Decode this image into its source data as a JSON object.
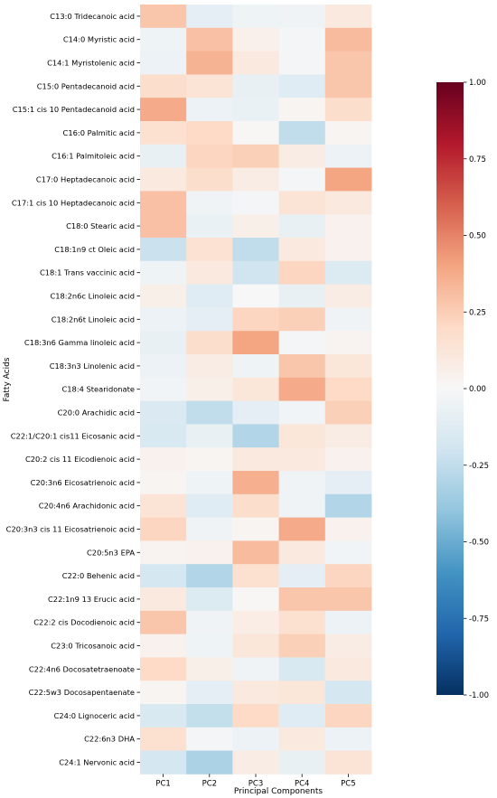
{
  "chart_data": {
    "type": "heatmap",
    "title": "",
    "xlabel": "Principal Components",
    "ylabel": "Fatty Acids",
    "columns": [
      "PC1",
      "PC2",
      "PC3",
      "PC4",
      "PC5"
    ],
    "rows": [
      "C13:0 Tridecanoic acid",
      "C14:0 Myristic acid",
      "C14:1 Myristolenic acid",
      "C15:0 Pentadecanoid acid",
      "C15:1 cis 10 Pentadecanoid acid",
      "C16:0 Palmitic acid",
      "C16:1 Palmitoleic acid",
      "C17:0 Heptadecanoic acid",
      "C17:1 cis 10  Heptadecanoic acid",
      "C18:0 Stearic acid",
      "C18:1n9 ct Oleic acid",
      "C18:1 Trans vaccinic acid",
      "C18:2n6c Linoleic acid",
      "C18:2n6t Linoleic acid",
      "C18:3n6 Gamma linoleic acid",
      "C18:3n3 Linolenic acid",
      "C18:4 Stearidonate",
      "C20:0 Arachidic acid",
      "C22:1/C20:1 cis11  Eicosanic acid",
      "C20:2 cis 11 Eicodienoic acid",
      "C20:3n6 Eicosatrienoic acid",
      "C20:4n6 Arachidonic acid",
      "C20:3n3 cis 11 Eicosatrienoic acid",
      "C20:5n3 EPA",
      "C22:0 Behenic acid",
      "C22:1n9 13 Erucic acid",
      "C22:2 cis Docodienoic acid",
      "C23:0 Tricosanoic acid",
      "C22:4n6 Docosatetraenoate",
      "C22:5w3 Docosapentaenate",
      "C24:0 Lignoceric acid",
      "C22:6n3 DHA",
      "C24:1 Nervonic acid"
    ],
    "values": [
      [
        0.28,
        -0.1,
        -0.05,
        -0.04,
        0.1
      ],
      [
        -0.05,
        0.3,
        0.05,
        -0.02,
        0.32
      ],
      [
        -0.06,
        0.35,
        0.1,
        -0.02,
        0.28
      ],
      [
        0.18,
        0.14,
        -0.08,
        -0.12,
        0.28
      ],
      [
        0.38,
        -0.06,
        -0.07,
        0.02,
        0.18
      ],
      [
        0.16,
        0.2,
        0.01,
        -0.25,
        0.02
      ],
      [
        -0.08,
        0.22,
        0.24,
        0.08,
        -0.06
      ],
      [
        0.1,
        0.18,
        0.08,
        -0.02,
        0.4
      ],
      [
        0.3,
        -0.04,
        -0.02,
        0.14,
        0.1
      ],
      [
        0.3,
        -0.07,
        0.06,
        -0.08,
        0.04
      ],
      [
        -0.22,
        0.15,
        -0.25,
        0.1,
        0.04
      ],
      [
        -0.05,
        0.1,
        -0.2,
        0.22,
        -0.14
      ],
      [
        0.06,
        -0.12,
        0.0,
        -0.08,
        0.08
      ],
      [
        -0.06,
        -0.1,
        0.22,
        0.24,
        -0.04
      ],
      [
        -0.08,
        0.18,
        0.4,
        -0.02,
        0.03
      ],
      [
        -0.06,
        0.08,
        -0.05,
        0.28,
        0.12
      ],
      [
        -0.03,
        0.06,
        0.12,
        0.38,
        0.2
      ],
      [
        -0.15,
        -0.25,
        -0.1,
        -0.03,
        0.24
      ],
      [
        -0.16,
        -0.08,
        -0.3,
        0.12,
        0.08
      ],
      [
        0.04,
        0.02,
        0.1,
        0.1,
        0.04
      ],
      [
        0.02,
        -0.05,
        0.36,
        -0.04,
        -0.1
      ],
      [
        0.14,
        -0.12,
        0.18,
        -0.04,
        -0.3
      ],
      [
        0.22,
        -0.04,
        0.02,
        0.38,
        0.04
      ],
      [
        0.03,
        0.04,
        0.32,
        0.1,
        -0.03
      ],
      [
        -0.18,
        -0.3,
        0.16,
        -0.1,
        0.22
      ],
      [
        0.1,
        -0.14,
        0.01,
        0.28,
        0.28
      ],
      [
        0.28,
        -0.04,
        0.07,
        0.16,
        -0.06
      ],
      [
        0.04,
        -0.05,
        0.12,
        0.24,
        0.08
      ],
      [
        0.2,
        0.06,
        -0.04,
        -0.16,
        0.1
      ],
      [
        0.02,
        -0.1,
        0.1,
        0.12,
        -0.18
      ],
      [
        -0.16,
        -0.24,
        0.2,
        -0.12,
        0.22
      ],
      [
        0.16,
        -0.02,
        -0.06,
        0.1,
        -0.06
      ],
      [
        -0.18,
        -0.32,
        0.08,
        -0.08,
        0.14
      ]
    ],
    "colorbar": {
      "min": -1.0,
      "max": 1.0,
      "ticks": [
        "1.00",
        "0.75",
        "0.50",
        "0.25",
        "0.00",
        "-0.25",
        "-0.50",
        "-0.75",
        "-1.00"
      ],
      "colormap": "RdBu_r",
      "stops": [
        "#053061",
        "#2166ac",
        "#4393c3",
        "#92c5de",
        "#d1e5f0",
        "#f7f7f7",
        "#fddbc7",
        "#f4a582",
        "#d6604d",
        "#b2182b",
        "#67001f"
      ]
    }
  }
}
